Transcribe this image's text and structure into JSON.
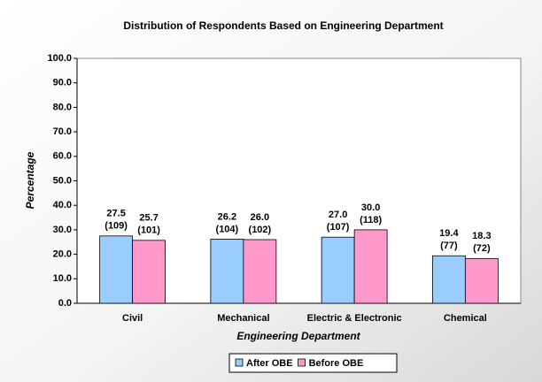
{
  "chart_data": {
    "type": "bar",
    "title": "Distribution of Respondents Based on Engineering Department",
    "x_label": "Engineering Department",
    "y_label": "Percentage",
    "categories": [
      "Civil",
      "Mechanical",
      "Electric & Electronic",
      "Chemical"
    ],
    "series": [
      {
        "name": "After OBE",
        "color": "#99ccff",
        "values": [
          27.5,
          26.2,
          27.0,
          19.4
        ],
        "value_labels": [
          "27.5",
          "26.2",
          "27.0",
          "19.4"
        ],
        "count_labels": [
          "(109)",
          "(104)",
          "(107)",
          "(77)"
        ]
      },
      {
        "name": "Before OBE",
        "color": "#ff99cc",
        "values": [
          25.7,
          26.0,
          30.0,
          18.3
        ],
        "value_labels": [
          "25.7",
          "26.0",
          "30.0",
          "18.3"
        ],
        "count_labels": [
          "(101)",
          "(102)",
          "(118)",
          "(72)"
        ]
      }
    ],
    "ylim": [
      0,
      100
    ],
    "yticks": [
      {
        "value": 0,
        "label": "0.0"
      },
      {
        "value": 10,
        "label": "10.0"
      },
      {
        "value": 20,
        "label": "20.0"
      },
      {
        "value": 30,
        "label": "30.0"
      },
      {
        "value": 40,
        "label": "40.0"
      },
      {
        "value": 50,
        "label": "50.0"
      },
      {
        "value": 60,
        "label": "60.0"
      },
      {
        "value": 70,
        "label": "70.0"
      },
      {
        "value": 80,
        "label": "80.0"
      },
      {
        "value": 90,
        "label": "90.0"
      },
      {
        "value": 100,
        "label": "100.0"
      }
    ],
    "legend": "bottom"
  }
}
